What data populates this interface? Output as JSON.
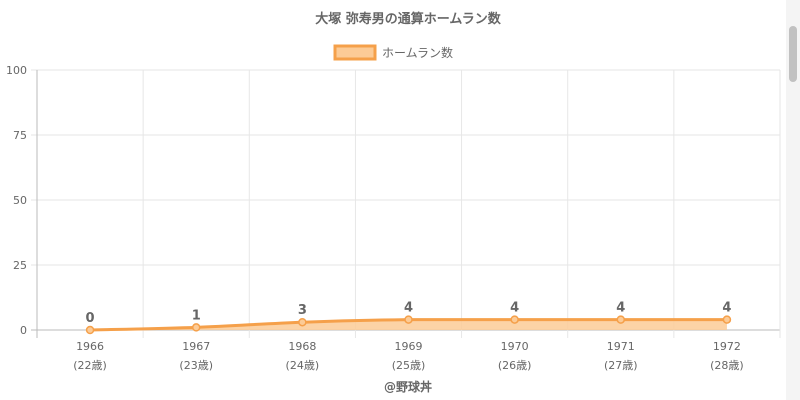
{
  "chart_data": {
    "type": "area",
    "title": "大塚 弥寿男の通算ホームラン数",
    "categories": [
      "1966",
      "1967",
      "1968",
      "1969",
      "1970",
      "1971",
      "1972"
    ],
    "category_sublabels": [
      "(22歳)",
      "(23歳)",
      "(24歳)",
      "(25歳)",
      "(26歳)",
      "(27歳)",
      "(28歳)"
    ],
    "series": [
      {
        "name": "ホームラン数",
        "values": [
          0,
          1,
          3,
          4,
          4,
          4,
          4
        ]
      }
    ],
    "ylim": [
      0,
      100
    ],
    "yticks": [
      "0",
      "25",
      "50",
      "75",
      "100"
    ],
    "grid": true,
    "legend_position": "top",
    "line_color": "#f5a04a",
    "fill_color": "#fccb96",
    "credit": "@野球丼"
  }
}
